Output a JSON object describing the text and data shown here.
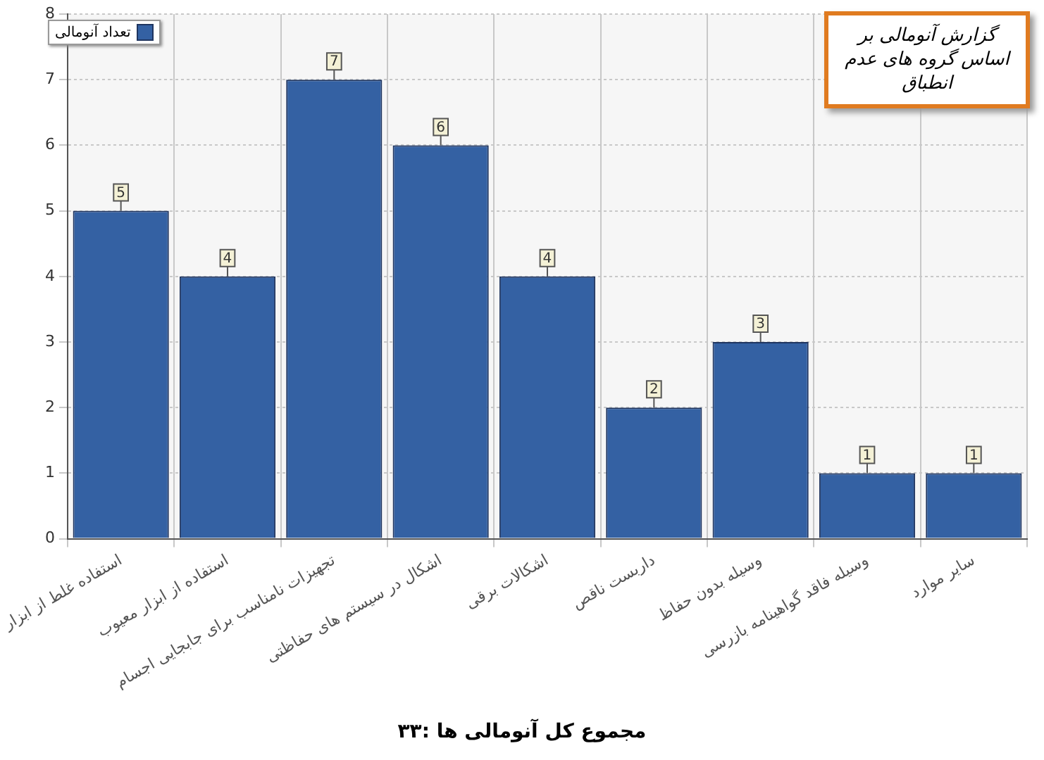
{
  "chart_data": {
    "type": "bar",
    "title": "گزارش آنومالی بر اساس گروه های عدم انطباق",
    "categories": [
      "استفاده غلط از ابزار",
      "استفاده از ابزار معیوب",
      "تجهیزات نامناسب برای جابجایی اجسام",
      "اشکال در سیستم های حفاظتی",
      "اشکالات برقی",
      "داربست ناقص",
      "وسیله بدون حفاظ",
      "وسیله فاقد گواهینامه بازرسی",
      "سایر موارد"
    ],
    "series": [
      {
        "name": "تعداد آنومالی",
        "color": "#3461a3",
        "values": [
          5,
          4,
          7,
          6,
          4,
          2,
          3,
          1,
          1
        ]
      }
    ],
    "ylim": [
      0,
      8
    ],
    "yticks": [
      0,
      1,
      2,
      3,
      4,
      5,
      6,
      7,
      8
    ],
    "grid": true,
    "legend": "top left",
    "data_labels": true,
    "annotations": [
      "مجموع کل آنومالی ها :۳۳"
    ]
  }
}
